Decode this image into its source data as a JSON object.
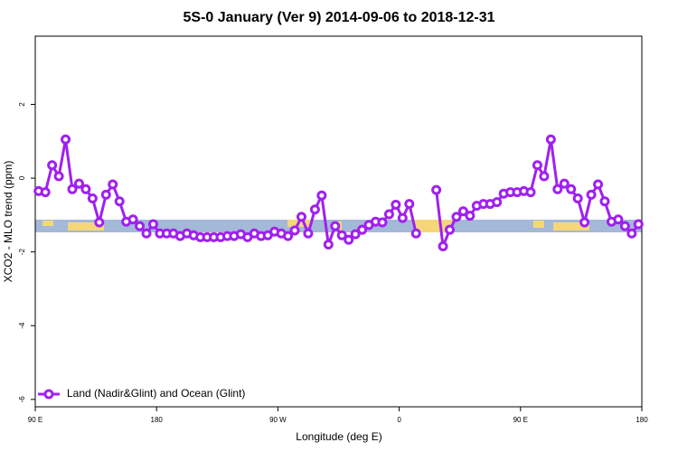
{
  "chart_data": {
    "type": "line",
    "title": "5S-0 January (Ver 9)   2014-09-06 to 2018-12-31",
    "x_label": "Longitude (deg E)",
    "y_label": "XCO2 - MLO trend (ppm)",
    "x": [
      92.5,
      97.5,
      102.5,
      107.5,
      112.5,
      117.5,
      122.5,
      127.5,
      132.5,
      137.5,
      142.5,
      147.5,
      152.5,
      157.5,
      162.5,
      167.5,
      172.5,
      177.5,
      182.5,
      187.5,
      192.5,
      197.5,
      202.5,
      207.5,
      212.5,
      217.5,
      222.5,
      227.5,
      232.5,
      237.5,
      242.5,
      247.5,
      252.5,
      257.5,
      262.5,
      267.5,
      272.5,
      277.5,
      282.5,
      287.5,
      292.5,
      297.5,
      302.5,
      307.5,
      312.5,
      317.5,
      322.5,
      327.5,
      332.5,
      337.5,
      342.5,
      347.5,
      352.5,
      357.5,
      362.5,
      367.5,
      372.5,
      377.5,
      382.5,
      387.5,
      392.5,
      397.5,
      402.5,
      407.5,
      412.5,
      417.5,
      422.5,
      427.5,
      432.5,
      437.5,
      442.5,
      447.5,
      452.5,
      457.5,
      462.5,
      467.5,
      472.5,
      477.5,
      482.5,
      487.5,
      492.5,
      497.5,
      502.5,
      507.5,
      512.5,
      517.5,
      522.5,
      527.5,
      532.5,
      537.5
    ],
    "series": [
      {
        "name": "Land (Nadir&Glint) and Ocean (Glint)",
        "color": "#a020f0",
        "values": [
          -0.35,
          -0.38,
          0.35,
          0.05,
          1.05,
          -0.3,
          -0.15,
          -0.3,
          -0.55,
          -1.2,
          -0.45,
          -0.17,
          -0.63,
          -1.18,
          -1.12,
          -1.3,
          -1.5,
          -1.25,
          -1.5,
          -1.5,
          -1.5,
          -1.57,
          -1.5,
          -1.55,
          -1.6,
          -1.6,
          -1.6,
          -1.6,
          -1.57,
          -1.57,
          -1.52,
          -1.6,
          -1.5,
          -1.57,
          -1.55,
          -1.45,
          -1.5,
          -1.57,
          -1.42,
          -1.05,
          -1.5,
          -0.85,
          -0.47,
          -1.8,
          -1.3,
          -1.55,
          -1.67,
          -1.52,
          -1.4,
          -1.27,
          -1.18,
          -1.2,
          -0.98,
          -0.72,
          -1.08,
          -0.7,
          -1.5,
          null,
          null,
          -0.32,
          -1.85,
          -1.4,
          -1.05,
          -0.9,
          -1.02,
          -0.75,
          -0.7,
          -0.7,
          -0.65,
          -0.42,
          -0.38,
          -0.38,
          -0.35,
          -0.38,
          0.35,
          0.05,
          1.05,
          -0.3,
          -0.15,
          -0.3,
          -0.55,
          -1.2,
          -0.45,
          -0.17,
          -0.63,
          -1.18,
          -1.12,
          -1.3,
          -1.5,
          -1.25
        ]
      }
    ],
    "xlim": [
      90,
      540
    ],
    "xticks": [
      {
        "value": 90,
        "label": "90 E"
      },
      180,
      {
        "value": 270,
        "label": "90 W"
      },
      {
        "value": 360,
        "label": "0"
      },
      {
        "value": 450,
        "label": "90 E"
      },
      {
        "value": 540,
        "label": "180"
      }
    ],
    "ylim": [
      -6.2,
      3.85
    ],
    "yticks": [
      -6,
      -4,
      -2,
      0,
      2
    ],
    "legend": "bottom-left"
  }
}
